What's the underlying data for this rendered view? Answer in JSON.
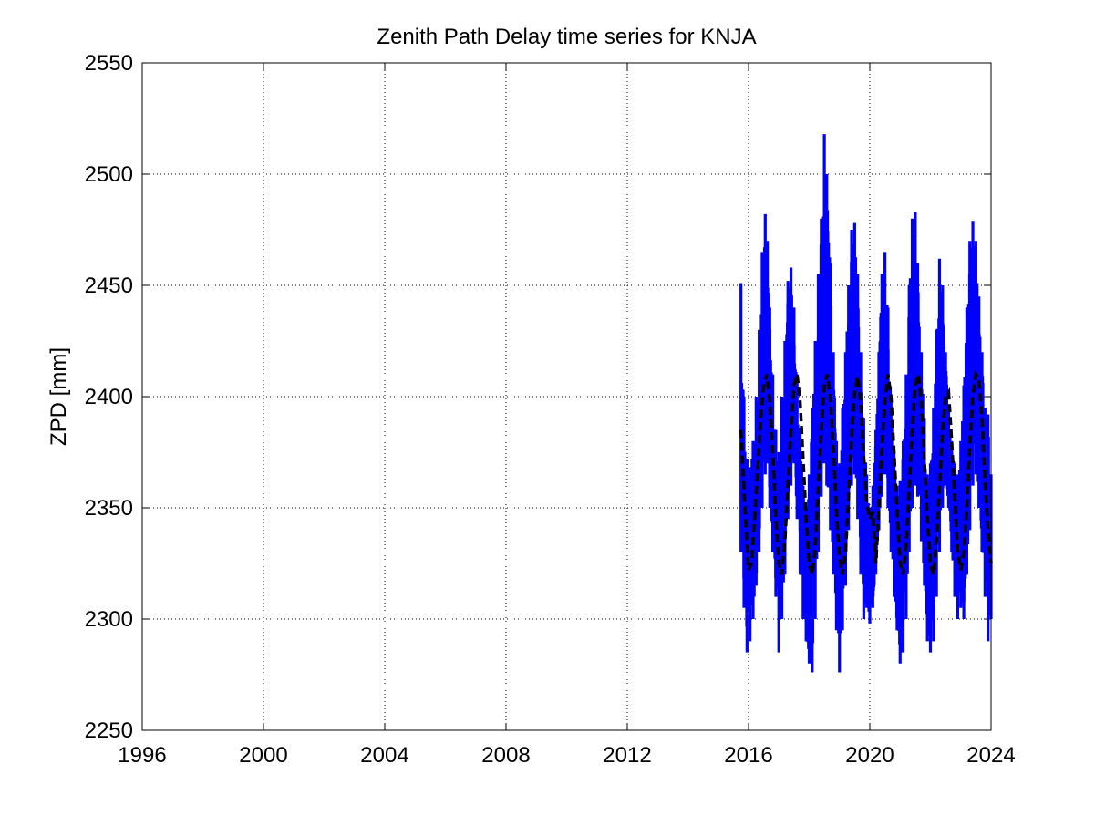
{
  "chart_data": {
    "type": "line",
    "title": "Zenith Path Delay time series for KNJA",
    "xlabel": "",
    "ylabel": "ZPD [mm]",
    "xlim": [
      1996,
      2024
    ],
    "ylim": [
      2250,
      2550
    ],
    "xticks": [
      1996,
      2000,
      2004,
      2008,
      2012,
      2016,
      2020,
      2024
    ],
    "yticks": [
      2250,
      2300,
      2350,
      2400,
      2450,
      2500,
      2550
    ],
    "xtick_labels": [
      "1996",
      "2000",
      "2004",
      "2008",
      "2012",
      "2016",
      "2020",
      "2024"
    ],
    "ytick_labels": [
      "2250",
      "2300",
      "2350",
      "2400",
      "2450",
      "2500",
      "2550"
    ],
    "grid": true,
    "legend": "none",
    "series": [
      {
        "role": "observed",
        "color": "#0000ff",
        "style": "solid",
        "x": [
          2015.75,
          2015.85,
          2015.95,
          2016.05,
          2016.15,
          2016.25,
          2016.35,
          2016.45,
          2016.55,
          2016.62,
          2016.7,
          2016.8,
          2016.9,
          2017.0,
          2017.1,
          2017.2,
          2017.3,
          2017.4,
          2017.5,
          2017.6,
          2017.7,
          2017.8,
          2017.9,
          2018.0,
          2018.1,
          2018.2,
          2018.3,
          2018.4,
          2018.5,
          2018.58,
          2018.7,
          2018.8,
          2018.9,
          2019.0,
          2019.1,
          2019.2,
          2019.3,
          2019.4,
          2019.5,
          2019.6,
          2019.7,
          2019.8,
          2019.9,
          2020.0,
          2020.1,
          2020.2,
          2020.3,
          2020.4,
          2020.5,
          2020.6,
          2020.7,
          2020.8,
          2020.9,
          2021.0,
          2021.1,
          2021.2,
          2021.3,
          2021.4,
          2021.5,
          2021.58,
          2021.7,
          2021.8,
          2021.9,
          2022.0,
          2022.1,
          2022.2,
          2022.3,
          2022.4,
          2022.5,
          2022.6,
          2022.7,
          2022.8,
          2022.9,
          2023.0,
          2023.1,
          2023.2,
          2023.3,
          2023.4,
          2023.5,
          2023.6,
          2023.7,
          2023.8,
          2023.9,
          2024.0
        ],
        "low": [
          2330,
          2305,
          2285,
          2290,
          2300,
          2315,
          2330,
          2350,
          2365,
          2370,
          2350,
          2330,
          2310,
          2285,
          2300,
          2320,
          2345,
          2360,
          2370,
          2345,
          2320,
          2300,
          2290,
          2280,
          2276,
          2300,
          2330,
          2355,
          2370,
          2360,
          2340,
          2320,
          2295,
          2276,
          2295,
          2315,
          2340,
          2360,
          2365,
          2345,
          2320,
          2300,
          2305,
          2298,
          2305,
          2320,
          2340,
          2355,
          2365,
          2350,
          2330,
          2310,
          2295,
          2280,
          2285,
          2300,
          2330,
          2350,
          2360,
          2355,
          2335,
          2315,
          2290,
          2285,
          2290,
          2310,
          2330,
          2350,
          2360,
          2350,
          2330,
          2310,
          2300,
          2305,
          2300,
          2320,
          2340,
          2360,
          2365,
          2350,
          2330,
          2310,
          2290,
          2300
        ],
        "high": [
          2451,
          2400,
          2372,
          2368,
          2380,
          2400,
          2430,
          2465,
          2482,
          2470,
          2440,
          2410,
          2385,
          2375,
          2400,
          2425,
          2452,
          2458,
          2440,
          2410,
          2385,
          2360,
          2350,
          2365,
          2395,
          2425,
          2455,
          2480,
          2518,
          2500,
          2460,
          2420,
          2380,
          2370,
          2395,
          2420,
          2450,
          2475,
          2478,
          2455,
          2420,
          2390,
          2365,
          2350,
          2360,
          2385,
          2420,
          2455,
          2465,
          2440,
          2400,
          2375,
          2360,
          2362,
          2380,
          2410,
          2450,
          2480,
          2483,
          2460,
          2420,
          2390,
          2365,
          2370,
          2395,
          2430,
          2462,
          2450,
          2420,
          2395,
          2380,
          2370,
          2365,
          2380,
          2405,
          2440,
          2470,
          2479,
          2470,
          2445,
          2420,
          2395,
          2392,
          2365
        ]
      },
      {
        "role": "model",
        "color": "#000000",
        "style": "dashed",
        "x": [
          2015.75,
          2015.9,
          2016.0,
          2016.1,
          2016.2,
          2016.3,
          2016.4,
          2016.5,
          2016.6,
          2016.7,
          2016.8,
          2016.9,
          2017.0,
          2017.1,
          2017.2,
          2017.3,
          2017.4,
          2017.5,
          2017.6,
          2017.7,
          2017.8,
          2017.9,
          2018.0,
          2018.1,
          2018.2,
          2018.3,
          2018.4,
          2018.5,
          2018.6,
          2018.7,
          2018.8,
          2018.9,
          2019.0,
          2019.1,
          2019.2,
          2019.3,
          2019.4,
          2019.5,
          2019.6,
          2019.7,
          2019.8,
          2019.9,
          2020.0,
          2020.1,
          2020.2,
          2020.3,
          2020.4,
          2020.5,
          2020.6,
          2020.7,
          2020.8,
          2020.9,
          2021.0,
          2021.1,
          2021.2,
          2021.3,
          2021.4,
          2021.5,
          2021.6,
          2021.7,
          2021.8,
          2021.9,
          2022.0,
          2022.1,
          2022.2,
          2022.3,
          2022.4,
          2022.5,
          2022.6,
          2022.7,
          2022.8,
          2022.9,
          2023.0,
          2023.1,
          2023.2,
          2023.3,
          2023.4,
          2023.5,
          2023.6,
          2023.7,
          2023.8,
          2023.9,
          2024.0
        ],
        "y": [
          2385,
          2345,
          2322,
          2325,
          2345,
          2368,
          2390,
          2405,
          2410,
          2398,
          2375,
          2345,
          2325,
          2320,
          2335,
          2360,
          2385,
          2405,
          2410,
          2398,
          2372,
          2345,
          2325,
          2320,
          2332,
          2360,
          2385,
          2405,
          2410,
          2400,
          2375,
          2348,
          2328,
          2320,
          2330,
          2355,
          2382,
          2402,
          2409,
          2398,
          2373,
          2352,
          2345,
          2348,
          2325,
          2350,
          2378,
          2398,
          2410,
          2400,
          2375,
          2348,
          2325,
          2320,
          2333,
          2358,
          2385,
          2405,
          2410,
          2398,
          2372,
          2345,
          2325,
          2320,
          2335,
          2360,
          2385,
          2400,
          2402,
          2380,
          2355,
          2330,
          2322,
          2330,
          2350,
          2378,
          2400,
          2410,
          2408,
          2390,
          2362,
          2340,
          2325
        ]
      }
    ]
  }
}
